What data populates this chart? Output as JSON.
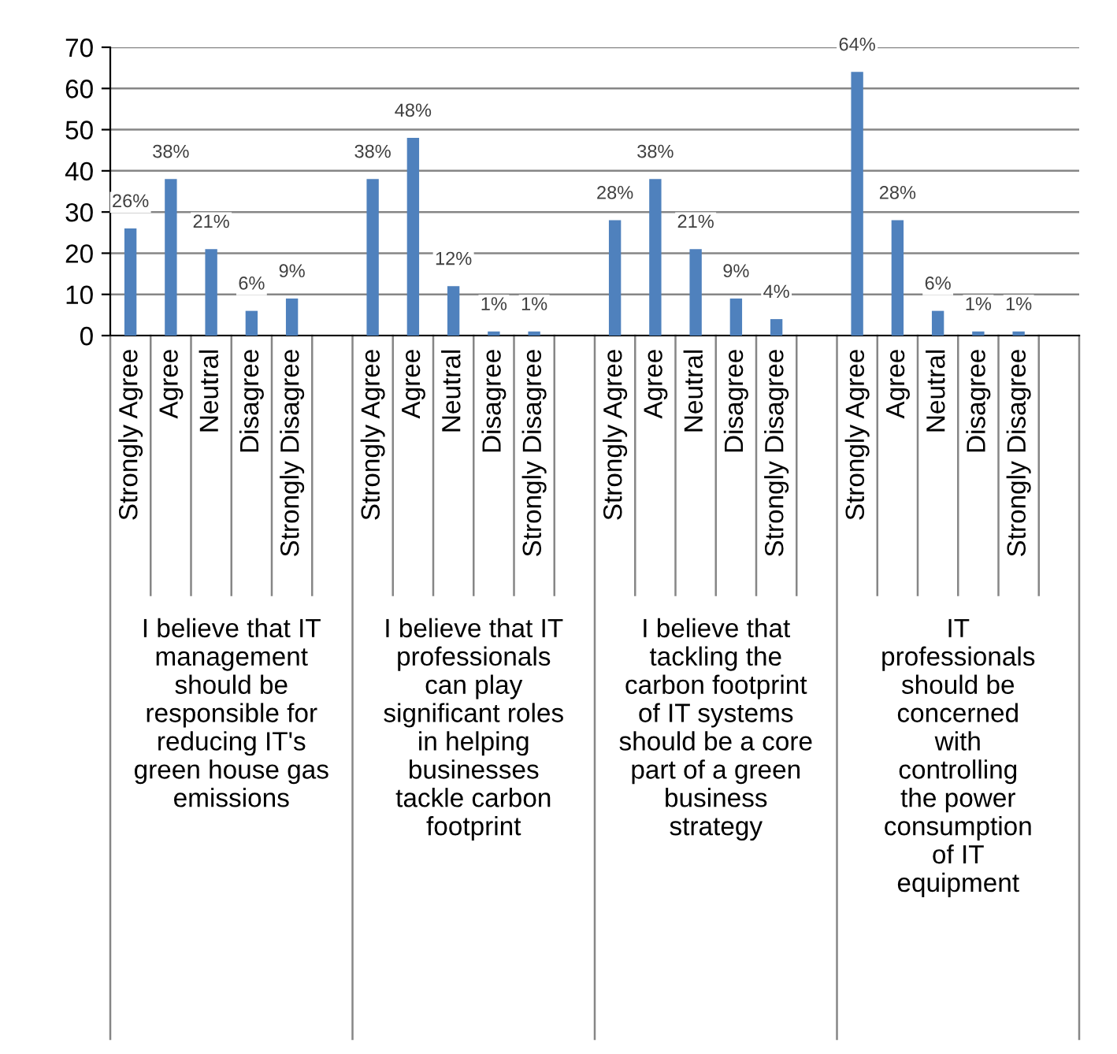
{
  "chart_data": {
    "type": "bar",
    "color": "#4f81bd",
    "categories": [
      "Strongly Agree",
      "Agree",
      "Neutral",
      "Disagree",
      "Strongly Disagree",
      null,
      "Strongly Agree",
      "Agree",
      "Neutral",
      "Disagree",
      "Strongly Disagree",
      null,
      "Strongly Agree",
      "Agree",
      "Neutral",
      "Disagree",
      "Strongly Disagree",
      null,
      "Strongly Agree",
      "Agree",
      "Neutral",
      "Disagree",
      "Strongly Disagree",
      null
    ],
    "values": [
      26,
      38,
      21,
      6,
      9,
      null,
      38,
      48,
      12,
      1,
      1,
      null,
      28,
      38,
      21,
      9,
      4,
      null,
      64,
      28,
      6,
      1,
      1,
      null
    ],
    "value_labels": [
      "26%",
      "38%",
      "21%",
      "6%",
      "9%",
      null,
      "38%",
      "48%",
      "12%",
      "1%",
      "1%",
      null,
      "28%",
      "38%",
      "21%",
      "9%",
      "4%",
      null,
      "64%",
      "28%",
      "6%",
      "1%",
      "1%",
      null
    ],
    "annotations": [
      "I believe that IT\nmanagement\nshould be\nresponsible for\nreducing IT's\ngreen house gas\nemissions",
      "I believe that IT\nprofessionals\ncan play\nsignificant roles\nin helping\nbusinesses\ntackle carbon\nfootprint",
      "I believe that\ntackling the\ncarbon footprint\nof IT systems\nshould be a core\npart of a green\nbusiness\nstrategy",
      "IT\nprofessionals\nshould be\nconcerned\nwith\ncontrolling\nthe power\nconsumption\nof IT\nequipment"
    ],
    "ylim": [
      0,
      70
    ],
    "yticks": [
      0,
      10,
      20,
      30,
      40,
      50,
      60,
      70
    ],
    "grid": "y",
    "legend": false
  }
}
